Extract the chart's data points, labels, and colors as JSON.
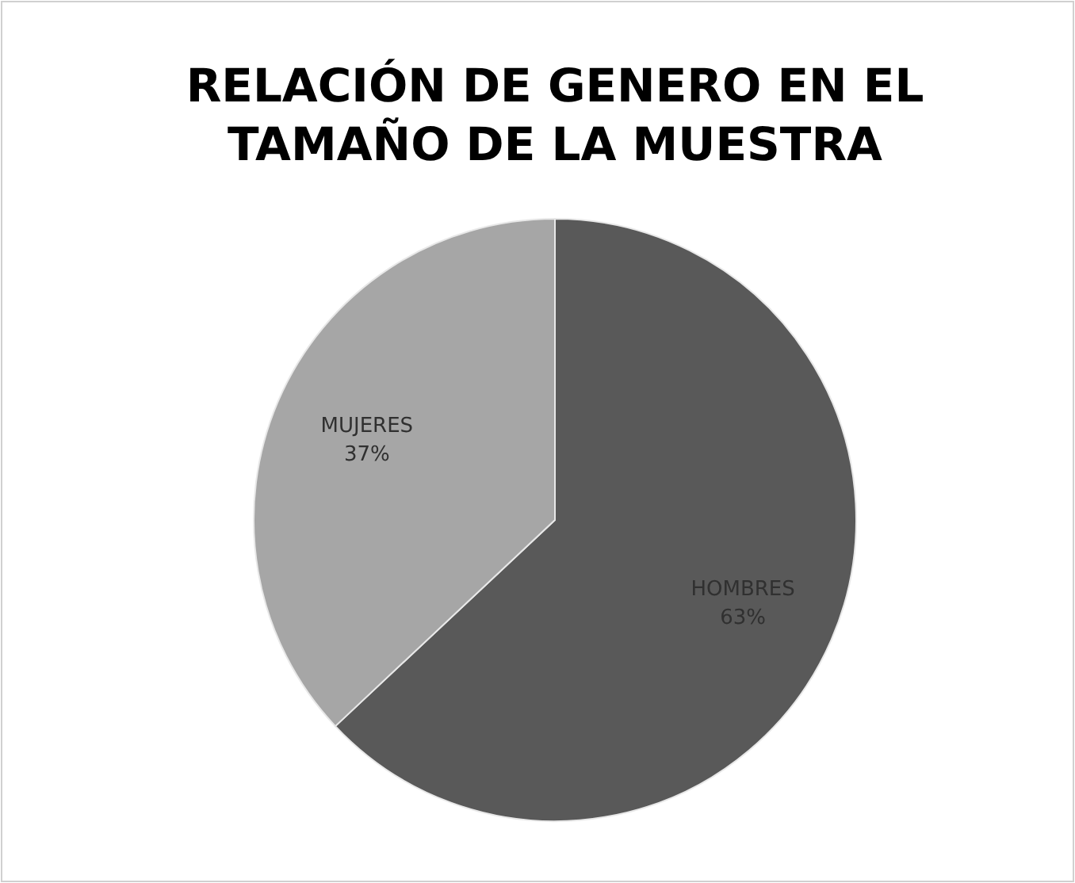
{
  "chart_data": {
    "type": "pie",
    "title": "RELACIÓN DE GENERO EN EL TAMAÑO DE LA MUESTRA",
    "categories": [
      "HOMBRES",
      "MUJERES"
    ],
    "values": [
      63,
      37
    ],
    "colors": [
      "#595959",
      "#a6a6a6"
    ],
    "value_labels": [
      "63%",
      "37%"
    ],
    "legend": false
  }
}
